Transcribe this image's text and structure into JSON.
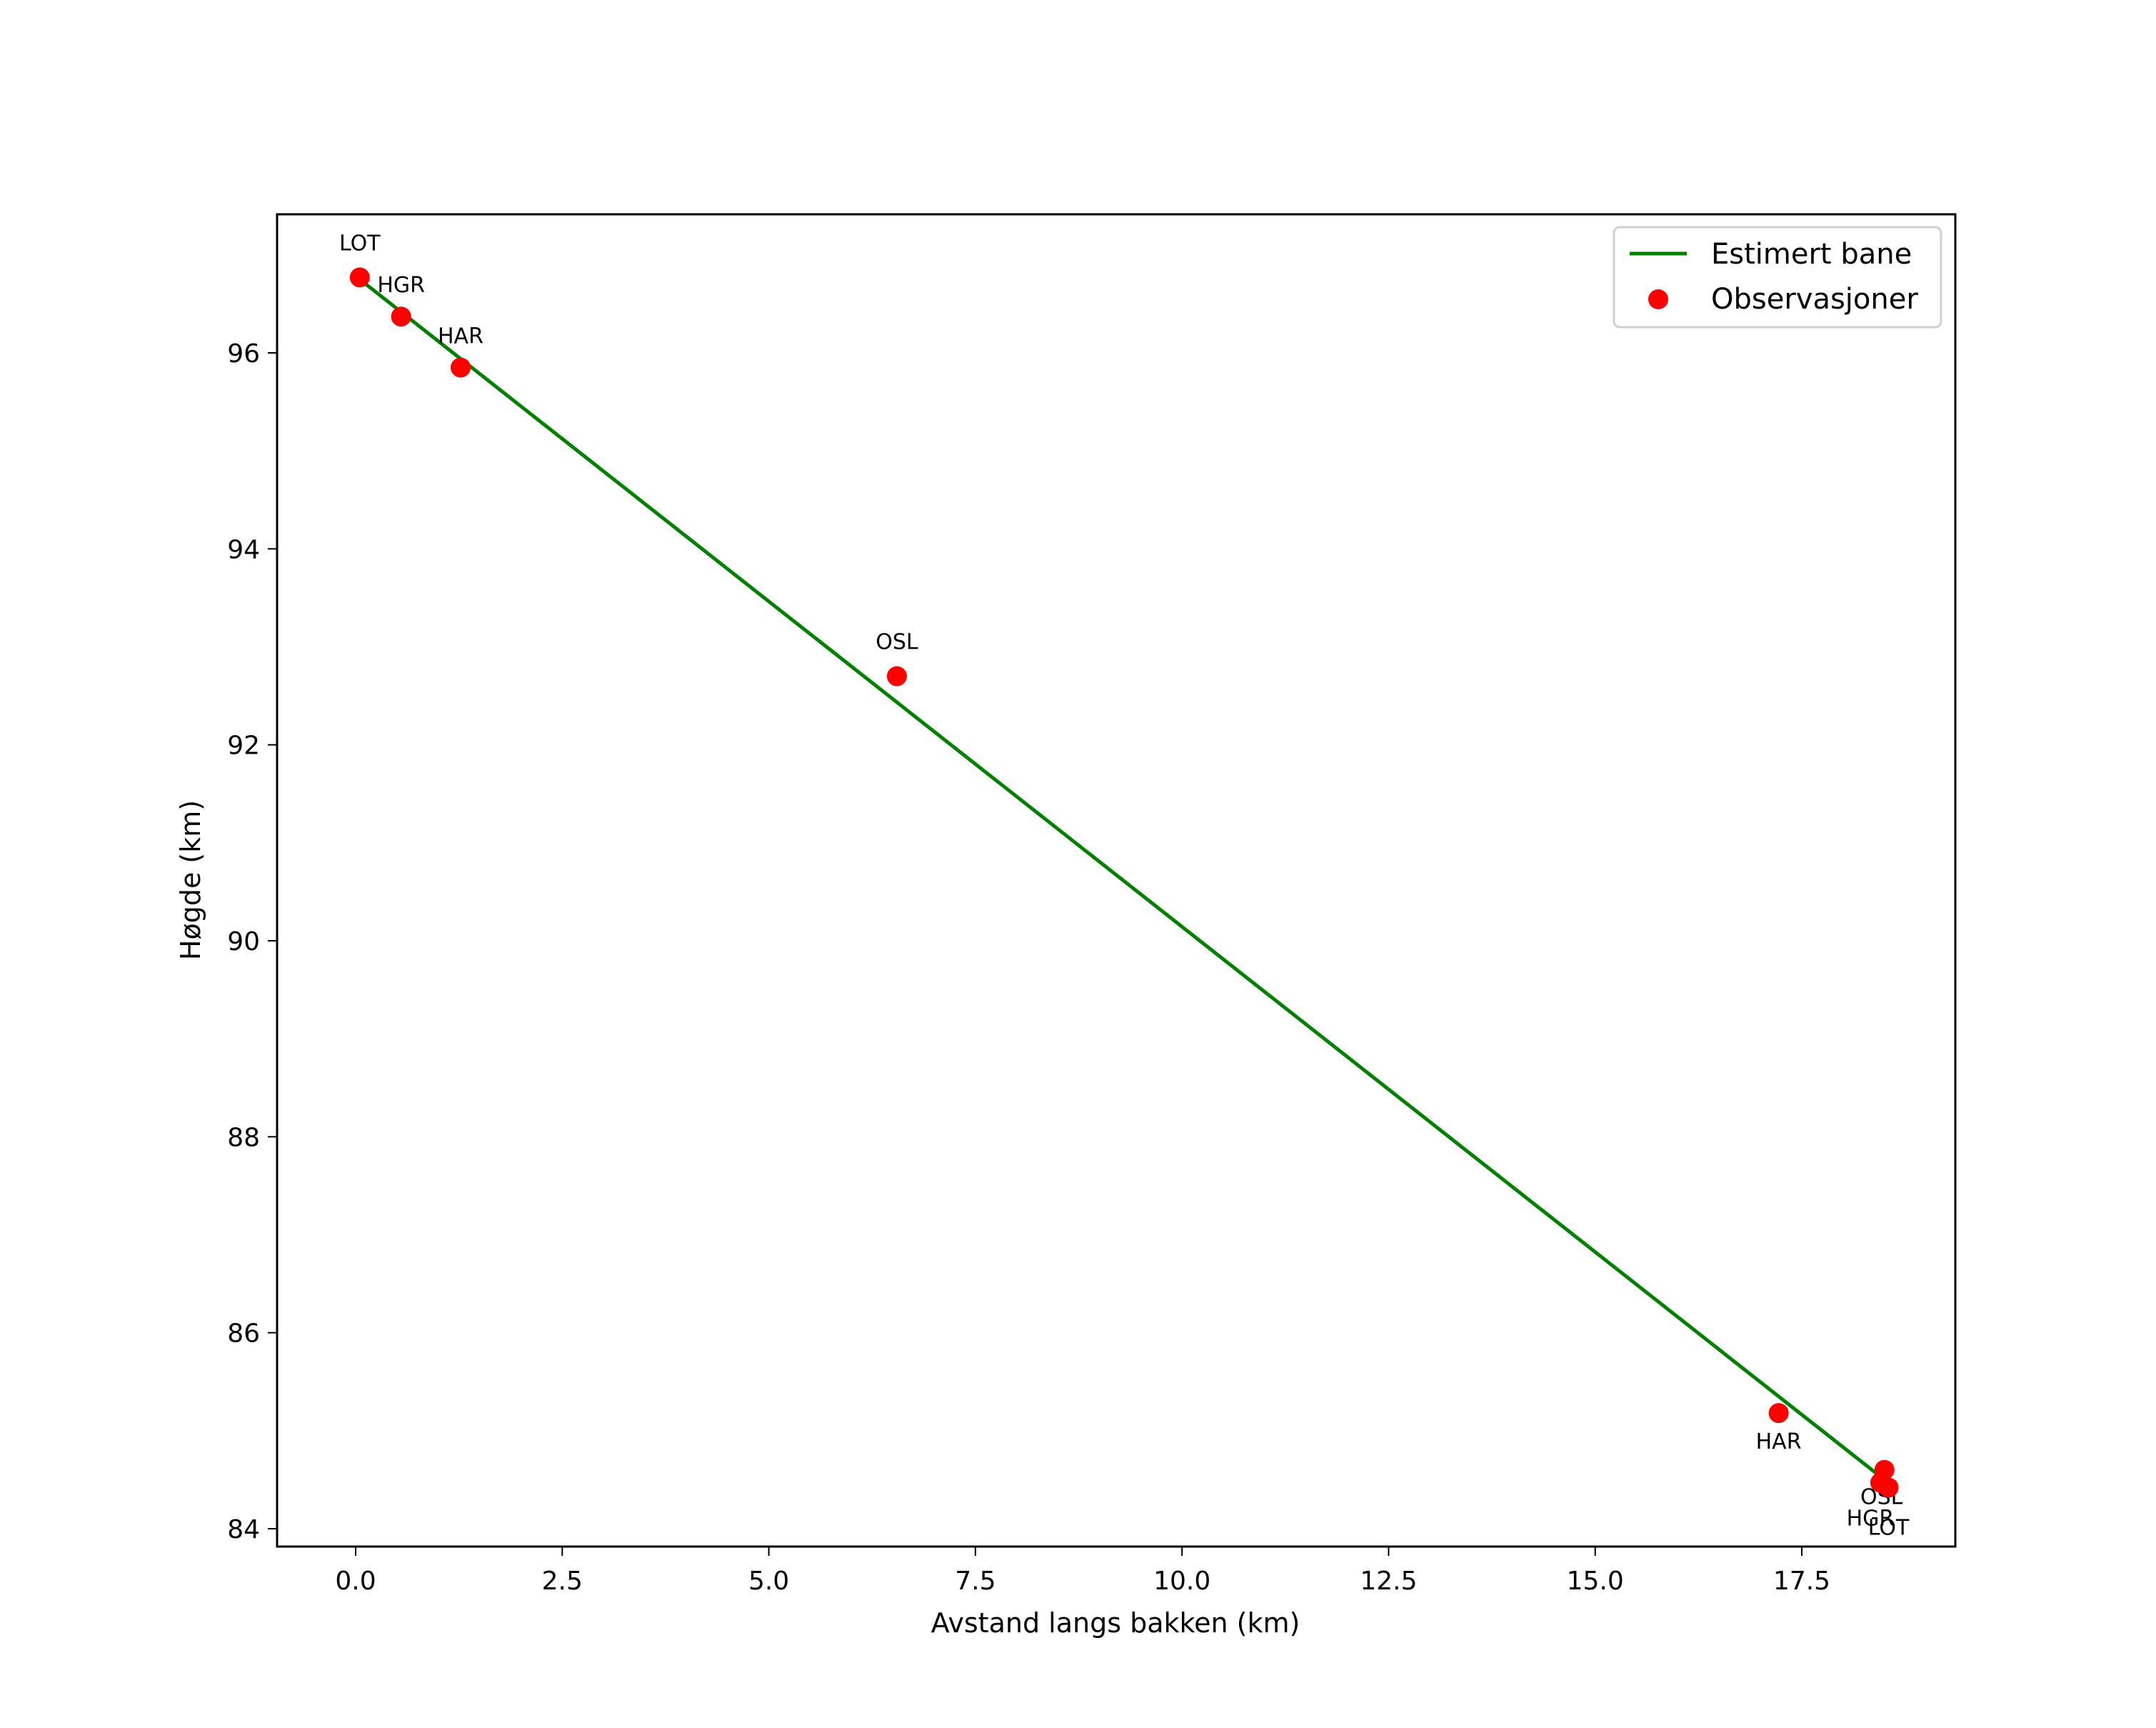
{
  "chart_data": {
    "type": "line",
    "title": "",
    "xlabel": "Avstand langs bakken (km)",
    "ylabel": "Høgde (km)",
    "xlim": [
      -0.95,
      19.5
    ],
    "ylim": [
      83.8,
      97.4
    ],
    "xticks": [
      0.0,
      2.5,
      5.0,
      7.5,
      10.0,
      12.5,
      15.0,
      17.5
    ],
    "xtick_labels": [
      "0.0",
      "2.5",
      "5.0",
      "7.5",
      "10.0",
      "12.5",
      "15.0",
      "17.5"
    ],
    "yticks": [
      84,
      86,
      88,
      90,
      92,
      94,
      96
    ],
    "ytick_labels": [
      "84",
      "86",
      "88",
      "90",
      "92",
      "94",
      "96"
    ],
    "grid": false,
    "legend_position": "upper right",
    "series": [
      {
        "name": "Estimert bane",
        "type": "line",
        "color": "#008000",
        "x": [
          0.05,
          18.5
        ],
        "y": [
          96.75,
          84.5
        ]
      },
      {
        "name": "Observasjoner",
        "type": "scatter",
        "color": "#ff0000",
        "points": [
          {
            "label": "LOT",
            "x": 0.05,
            "y": 96.77
          },
          {
            "label": "HGR",
            "x": 0.55,
            "y": 96.37
          },
          {
            "label": "HAR",
            "x": 1.27,
            "y": 95.85
          },
          {
            "label": "OSL",
            "x": 6.55,
            "y": 92.7
          },
          {
            "label": "HAR",
            "x": 17.22,
            "y": 85.18
          },
          {
            "label": "OSL",
            "x": 18.5,
            "y": 84.6
          },
          {
            "label": "HGR",
            "x": 18.45,
            "y": 84.47
          },
          {
            "label": "LOT",
            "x": 18.55,
            "y": 84.42
          }
        ]
      }
    ]
  },
  "legend": {
    "items": [
      {
        "label": "Estimert bane",
        "color": "#008000",
        "marker": "line"
      },
      {
        "label": "Observasjoner",
        "color": "#ff0000",
        "marker": "circle"
      }
    ]
  }
}
